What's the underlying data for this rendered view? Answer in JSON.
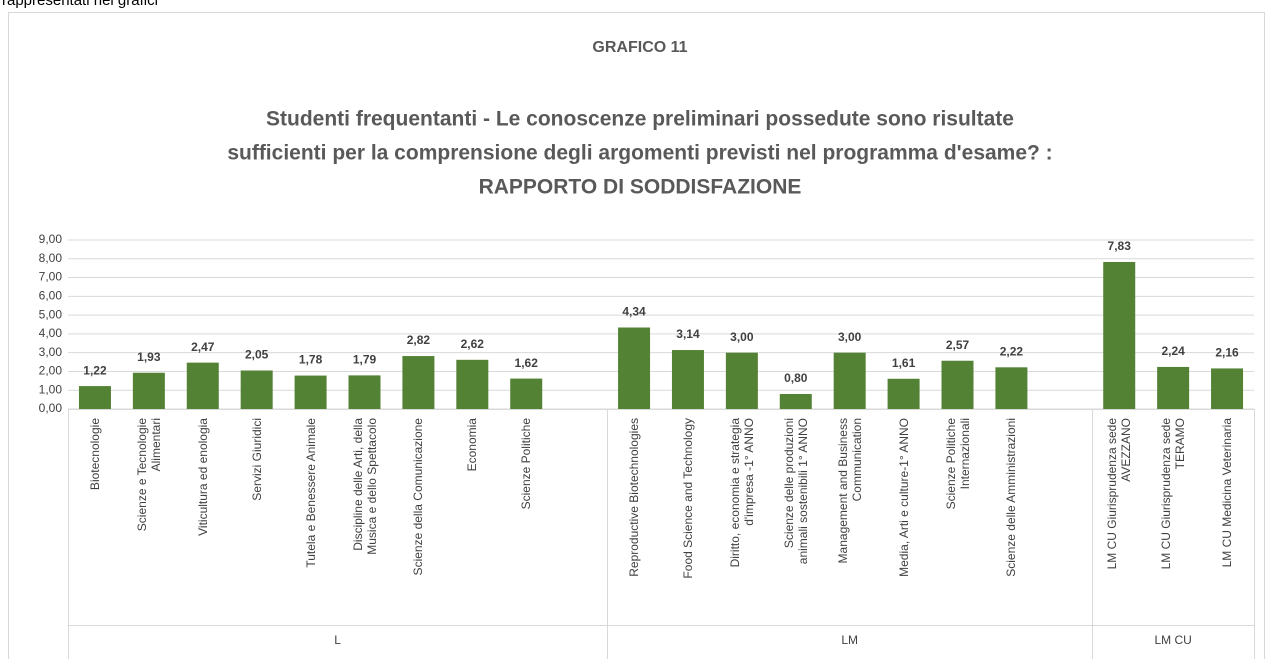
{
  "caption": "rappresentati nei grafici",
  "chart_data": {
    "type": "bar",
    "title": "GRAFICO 11",
    "subtitle": [
      "Studenti frequentanti - Le conoscenze preliminari possedute sono risultate",
      "sufficienti per la comprensione degli argomenti previsti nel programma d'esame? :",
      "RAPPORTO DI SODDISFAZIONE"
    ],
    "categories": [
      "Biotecnologie",
      "Scienze e Tecnologie\nAlimentari",
      "Viticultura ed enologia",
      "Servizi Giuridici",
      "Tutela e Benessere Animale",
      "Discipline delle Arti, della\nMusica e dello Spettacolo",
      "Scienze della Comunicazione",
      "Economia",
      "Scienze Politiche",
      null,
      "Reproductive Biotechnologies",
      "Food Science and Technology",
      "Diritto, economia e strategia\nd'impresa -1° ANNO",
      "Scienze delle produzioni\nanimali sostenibili 1° ANNO",
      "Management and Business\nCommunication",
      "Media, Arti e culture-1° ANNO",
      "Scienze Politiche\nInternazionali",
      "Scienze delle Amministrazioni",
      null,
      "LM CU  Giurisprudenza sede\nAVEZZANO",
      "LM CU Giurisprudenza  sede\nTERAMO",
      "LM CU Medicina Veterinaria"
    ],
    "values": [
      1.22,
      1.93,
      2.47,
      2.05,
      1.78,
      1.79,
      2.82,
      2.62,
      1.62,
      null,
      4.34,
      3.14,
      3.0,
      0.8,
      3.0,
      1.61,
      2.57,
      2.22,
      null,
      7.83,
      2.24,
      2.16
    ],
    "value_labels": [
      "1,22",
      "1,93",
      "2,47",
      "2,05",
      "1,78",
      "1,79",
      "2,82",
      "2,62",
      "1,62",
      null,
      "4,34",
      "3,14",
      "3,00",
      "0,80",
      "3,00",
      "1,61",
      "2,57",
      "2,22",
      null,
      "7,83",
      "2,24",
      "2,16"
    ],
    "groups": [
      {
        "name": "L",
        "span": 10
      },
      {
        "name": "LM",
        "span": 9
      },
      {
        "name": "LM CU",
        "span": 3
      }
    ],
    "color": "#548235",
    "ylim": [
      0,
      9
    ],
    "yticks": [
      {
        "value": 0,
        "label": "0,00"
      },
      {
        "value": 1,
        "label": "1,00"
      },
      {
        "value": 2,
        "label": "2,00"
      },
      {
        "value": 3,
        "label": "3,00"
      },
      {
        "value": 4,
        "label": "4,00"
      },
      {
        "value": 5,
        "label": "5,00"
      },
      {
        "value": 6,
        "label": "6,00"
      },
      {
        "value": 7,
        "label": "7,00"
      },
      {
        "value": 8,
        "label": "8,00"
      },
      {
        "value": 9,
        "label": "9,00"
      }
    ],
    "grid": true
  }
}
